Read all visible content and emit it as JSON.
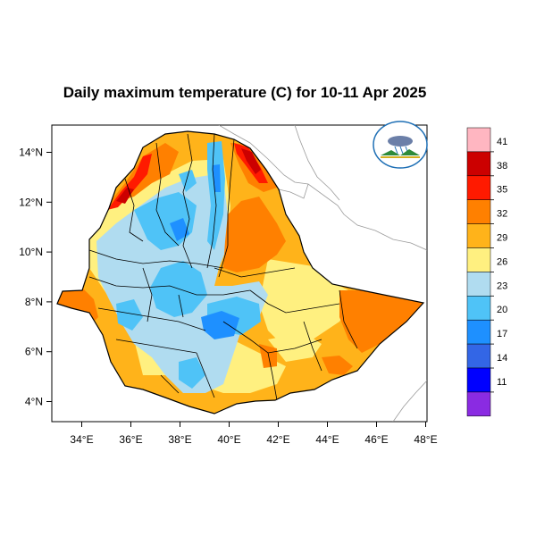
{
  "title": "Daily maximum temperature (C) for 10-11 Apr 2025",
  "axes": {
    "x_ticks": [
      "34°E",
      "36°E",
      "38°E",
      "40°E",
      "42°E",
      "44°E",
      "46°E",
      "48°E"
    ],
    "y_ticks": [
      "14°N",
      "12°N",
      "10°N",
      "8°N",
      "6°N",
      "4°N"
    ]
  },
  "legend": {
    "labels": [
      "41",
      "38",
      "35",
      "32",
      "29",
      "26",
      "23",
      "20",
      "17",
      "14",
      "11"
    ],
    "colors": [
      "#ffb6c1",
      "#cc0000",
      "#ff1a00",
      "#ff8000",
      "#ffb31a",
      "#fff080",
      "#b0dcf0",
      "#4fc3f7",
      "#1e90ff",
      "#3366e6",
      "#0000ff",
      "#8a2be2"
    ]
  },
  "logo": {
    "name": "ethiopian-meteorology-institute-logo"
  },
  "palette": {
    "hot": "#ff8000",
    "warm": "#ffb31a",
    "mild": "#fff080",
    "cool": "#b0dcf0",
    "cold": "#4fc3f7",
    "coldest": "#1e90ff",
    "red": "#cc0000"
  }
}
